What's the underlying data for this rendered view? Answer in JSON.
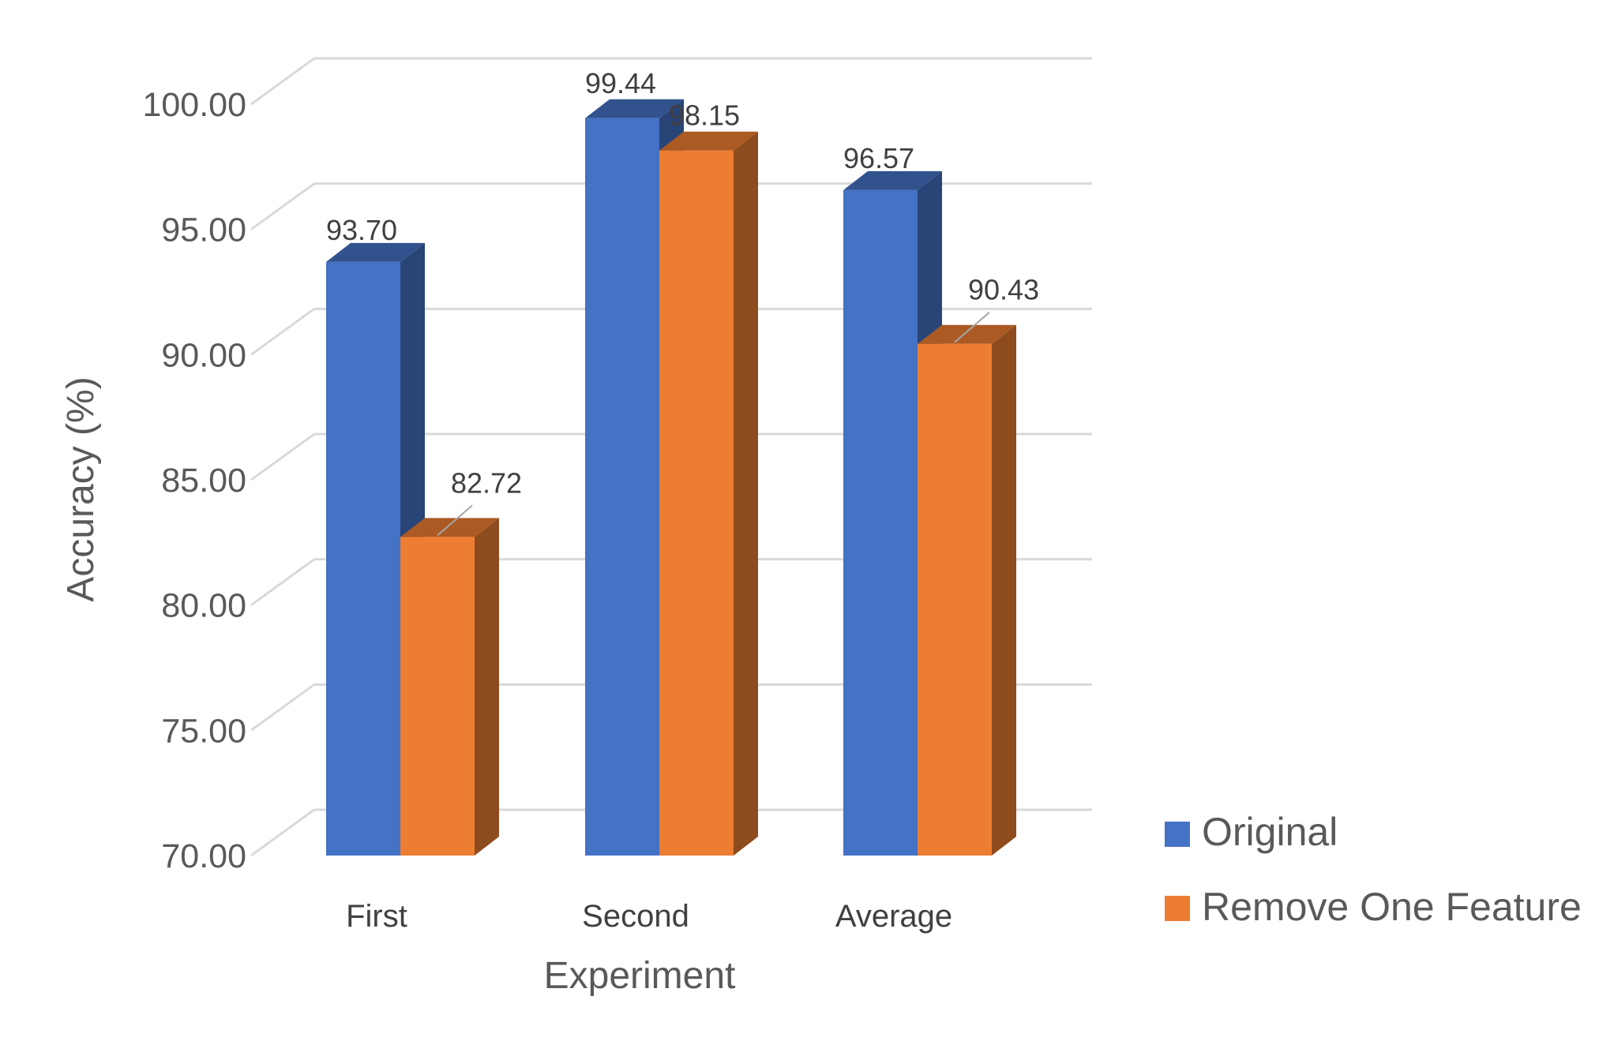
{
  "chart_data": {
    "type": "bar",
    "title": "",
    "xlabel": "Experiment",
    "ylabel": "Accuracy (%)",
    "categories": [
      "First",
      "Second",
      "Average"
    ],
    "series": [
      {
        "name": "Original",
        "values": [
          93.7,
          99.44,
          96.57
        ],
        "color": "#4472C4"
      },
      {
        "name": "Remove One Feature",
        "values": [
          82.72,
          98.15,
          90.43
        ],
        "color": "#ED7D31"
      }
    ],
    "data_labels": [
      [
        "93.70",
        "99.44",
        "96.57"
      ],
      [
        "82.72",
        "98.15",
        "90.43"
      ]
    ],
    "ylim": [
      70,
      100
    ],
    "ytick_values": [
      70,
      75,
      80,
      85,
      90,
      95,
      100
    ],
    "ytick_labels": [
      "70.00",
      "75.00",
      "80.00",
      "85.00",
      "90.00",
      "95.00",
      "100.00"
    ],
    "grid": true,
    "style": "3d-clustered-column",
    "legend": {
      "position": "right-bottom",
      "items": [
        {
          "label": "Original",
          "color": "#4472C4"
        },
        {
          "label": "Remove One Feature",
          "color": "#ED7D31"
        }
      ]
    }
  }
}
